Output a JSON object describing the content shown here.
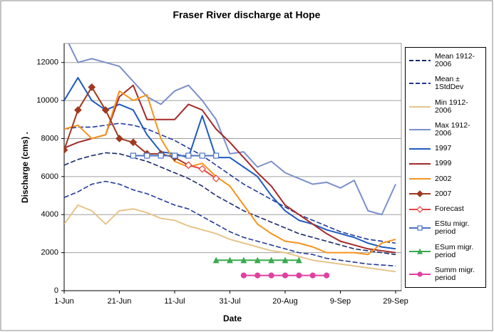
{
  "chart_data": {
    "type": "line",
    "title": "Fraser River discharge at Hope",
    "x_label": "Date",
    "y_label": "Discharge (cms) .",
    "categories": [
      "1-Jun",
      null,
      null,
      null,
      "21-Jun",
      null,
      null,
      null,
      "11-Jul",
      null,
      null,
      null,
      "31-Jul",
      null,
      null,
      null,
      "20-Aug",
      null,
      null,
      null,
      "9-Sep",
      null,
      null,
      null,
      "29-Sep"
    ],
    "ylim": [
      0,
      13000
    ],
    "yticks": [
      0,
      2000,
      4000,
      6000,
      8000,
      10000,
      12000
    ],
    "grid": true,
    "legend": "right",
    "series": [
      {
        "name": "Mean 1912-2006",
        "color": "#1b2a6b",
        "line_style": "dashed",
        "values": [
          6600,
          6900,
          7100,
          7250,
          7200,
          7000,
          6800,
          6500,
          6200,
          5900,
          5500,
          5000,
          4600,
          4200,
          3900,
          3600,
          3300,
          3000,
          2800,
          2600,
          2400,
          2200,
          2100,
          2000,
          1900
        ]
      },
      {
        "name": "Mean ± 1StdDev",
        "color": "#23399a",
        "line_style": "dashed",
        "values": [
          8500,
          8600,
          8600,
          8700,
          8800,
          8700,
          8500,
          8200,
          7900,
          7500,
          7100,
          6600,
          6100,
          5600,
          5200,
          4800,
          4400,
          4000,
          3700,
          3400,
          3100,
          2900,
          2700,
          2600,
          2500
        ],
        "lower": [
          4900,
          5200,
          5600,
          5750,
          5600,
          5300,
          5100,
          4800,
          4500,
          4300,
          3900,
          3500,
          3100,
          2800,
          2600,
          2400,
          2200,
          2000,
          1900,
          1700,
          1600,
          1500,
          1400,
          1350,
          1300
        ]
      },
      {
        "name": "Min 1912-2006",
        "color": "#e6c48a",
        "values": [
          3500,
          4500,
          4200,
          3500,
          4200,
          4300,
          4100,
          3800,
          3700,
          3400,
          3200,
          3000,
          2700,
          2500,
          2300,
          2100,
          2000,
          1800,
          1600,
          1500,
          1400,
          1300,
          1200,
          1100,
          1000
        ]
      },
      {
        "name": "Max 1912-2006",
        "color": "#7b8fcc",
        "values": [
          13500,
          12000,
          12200,
          12000,
          11800,
          11000,
          10200,
          9800,
          10500,
          10800,
          10000,
          9000,
          7200,
          7300,
          6500,
          6800,
          6200,
          5900,
          5600,
          5700,
          5400,
          5800,
          4200,
          4000,
          5600
        ]
      },
      {
        "name": "1997",
        "color": "#1f5bbf",
        "values": [
          10000,
          11200,
          10000,
          9500,
          9800,
          9500,
          8200,
          7300,
          7200,
          7000,
          9200,
          7000,
          7000,
          6500,
          6000,
          5000,
          4200,
          3700,
          3500,
          3200,
          3000,
          2800,
          2500,
          2300,
          2200
        ]
      },
      {
        "name": "1999",
        "color": "#a52a2a",
        "values": [
          7500,
          7800,
          8000,
          8200,
          10200,
          10800,
          9000,
          9000,
          9000,
          9800,
          9500,
          8500,
          7800,
          7000,
          6200,
          5500,
          4500,
          4000,
          3500,
          3000,
          2600,
          2400,
          2200,
          2100,
          2000
        ]
      },
      {
        "name": "2002",
        "color": "#f7941d",
        "values": [
          8500,
          8700,
          8000,
          8200,
          10500,
          10000,
          10300,
          8000,
          6800,
          6500,
          6700,
          6000,
          5500,
          4500,
          3500,
          3000,
          2600,
          2500,
          2300,
          2000,
          2000,
          2000,
          1900,
          2500,
          2700
        ]
      },
      {
        "name": "2007",
        "color": "#a0391f",
        "marker": "diamond",
        "marker_fill": "#a0391f",
        "values": [
          7400,
          9500,
          10700,
          9500,
          8000,
          7800,
          7200,
          7200,
          7000,
          6600,
          null,
          null,
          null,
          null,
          null,
          null,
          null,
          null,
          null,
          null,
          null,
          null,
          null,
          null,
          null
        ]
      },
      {
        "name": "Forecast",
        "color": "#e8423f",
        "marker": "diamond",
        "marker_fill": "#ffffff",
        "values": [
          null,
          null,
          null,
          null,
          null,
          null,
          null,
          null,
          null,
          6600,
          6400,
          5900,
          null,
          null,
          null,
          null,
          null,
          null,
          null,
          null,
          null,
          null,
          null,
          null,
          null
        ]
      },
      {
        "name": "EStu migr. period",
        "color": "#4a72c4",
        "marker": "square",
        "marker_fill": "#ffffff",
        "values": [
          null,
          null,
          null,
          null,
          null,
          7100,
          7100,
          7100,
          7100,
          7100,
          7100,
          7100,
          null,
          null,
          null,
          null,
          null,
          null,
          null,
          null,
          null,
          null,
          null,
          null,
          null
        ]
      },
      {
        "name": "ESum migr. period",
        "color": "#3aaa4f",
        "marker": "triangle",
        "marker_fill": "#3aaa4f",
        "values": [
          null,
          null,
          null,
          null,
          null,
          null,
          null,
          null,
          null,
          null,
          null,
          1600,
          1600,
          1600,
          1600,
          1600,
          1600,
          1600,
          null,
          null,
          null,
          null,
          null,
          null,
          null
        ]
      },
      {
        "name": "Summ migr. period",
        "color": "#e040a0",
        "marker": "circle",
        "marker_fill": "#e040a0",
        "values": [
          null,
          null,
          null,
          null,
          null,
          null,
          null,
          null,
          null,
          null,
          null,
          null,
          null,
          800,
          800,
          800,
          800,
          800,
          800,
          800,
          null,
          null,
          null,
          null,
          null
        ]
      }
    ]
  }
}
